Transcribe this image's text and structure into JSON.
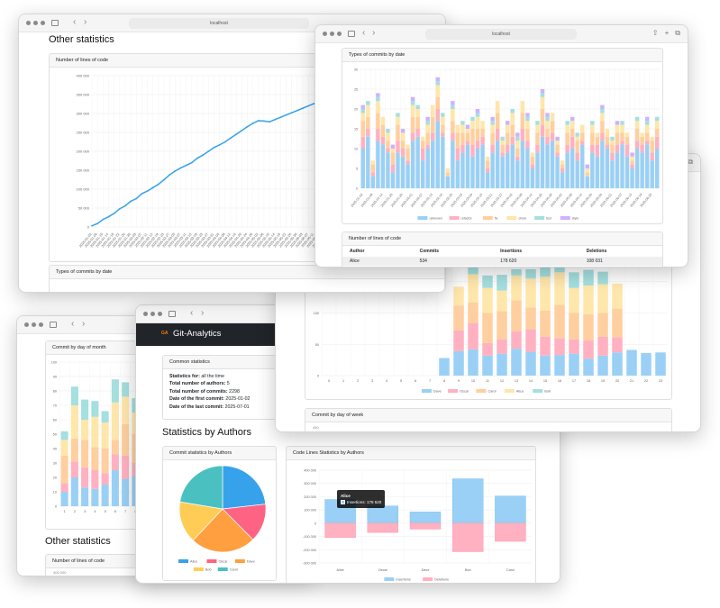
{
  "browser": {
    "address": "localhost"
  },
  "app": {
    "brand": "Git-Analytics",
    "logo_text": "GA"
  },
  "colors": {
    "blue": "#9ad0f5",
    "pink": "#ffb1c1",
    "orange": "#ffcf9f",
    "yellow": "#ffe6aa",
    "teal": "#a5dfdf",
    "purple": "#ccb2ff",
    "blue_solid": "#36a2eb",
    "pink_solid": "#ff6384",
    "orange_solid": "#ff9f40",
    "yellow_solid": "#ffcd56",
    "teal_solid": "#4bc0c0",
    "dark_header": "#212529"
  },
  "headings": {
    "other_statistics": "Other statistics",
    "statistics_by_authors": "Statistics by Authors"
  },
  "cards": {
    "lines_of_code": "Number of lines of code",
    "types_of_commits": "Types of commits by date",
    "commit_by_day_of_month": "Commit by day of month",
    "commit_by_day_of_week": "Commit by day of week",
    "common_statistics": "Common statistics",
    "commit_stats_by_authors": "Commit statistics by Authors",
    "code_lines_by_authors": "Code Lines Statistics by Authors"
  },
  "common_stats": [
    {
      "label": "Statistics for:",
      "value": "all the time"
    },
    {
      "label": "Total number of authors:",
      "value": "5"
    },
    {
      "label": "Total number of commits:",
      "value": "2298"
    },
    {
      "label": "Date of the first commit:",
      "value": "2025-01-02"
    },
    {
      "label": "Date of the last commit:",
      "value": "2025-07-01"
    }
  ],
  "lines_table": {
    "headers": [
      "Author",
      "Commits",
      "Insertions",
      "Deletions"
    ],
    "rows": [
      [
        "Alice",
        "534",
        "178 620",
        "108 031"
      ]
    ]
  },
  "day_of_week_first_tick": "450",
  "lines_of_code_first_tick": "400 000",
  "tooltip": {
    "title": "Alice",
    "text": "Insertions: 178 620"
  },
  "chart_data": [
    {
      "id": "lines",
      "type": "line",
      "title": "Number of lines of code",
      "ylim": [
        0,
        400000
      ],
      "yticks": [
        0,
        50000,
        100000,
        150000,
        200000,
        250000,
        300000,
        350000,
        400000
      ],
      "grid": true,
      "x": [
        "2025-01-02",
        "2025-01-06",
        "2025-01-10",
        "2025-01-14",
        "2025-01-18",
        "2025-01-22",
        "2025-01-26",
        "2025-01-30",
        "2025-02-03",
        "2025-02-07",
        "2025-02-11",
        "2025-02-15",
        "2025-02-19",
        "2025-02-23",
        "2025-02-27",
        "2025-03-03",
        "2025-03-07",
        "2025-03-11",
        "2025-03-15",
        "2025-03-19",
        "2025-03-23",
        "2025-03-27",
        "2025-03-31",
        "2025-04-04",
        "2025-04-08",
        "2025-04-12",
        "2025-04-16",
        "2025-04-20",
        "2025-04-24",
        "2025-04-28",
        "2025-05-02",
        "2025-05-06",
        "2025-05-10",
        "2025-05-14",
        "2025-05-18",
        "2025-05-22",
        "2025-05-26",
        "2025-05-30",
        "2025-06-03",
        "2025-06-07",
        "2025-06-11",
        "2025-06-15",
        "2025-06-19",
        "2025-06-23",
        "2025-06-27"
      ],
      "values": [
        3000,
        9000,
        20000,
        27000,
        36000,
        48000,
        56000,
        68000,
        75000,
        88000,
        95000,
        104000,
        113000,
        125000,
        138000,
        148000,
        156000,
        163000,
        170000,
        182000,
        190000,
        200000,
        210000,
        217000,
        225000,
        235000,
        245000,
        255000,
        265000,
        274000,
        281000,
        280000,
        278000,
        284000,
        290000,
        296000,
        302000,
        308000,
        314000,
        320000,
        326000,
        332000,
        338000,
        344000,
        350000
      ],
      "color": "#36a2eb"
    },
    {
      "id": "types",
      "type": "bar",
      "stacked": true,
      "title": "Types of commits by date",
      "ylim": [
        0,
        30
      ],
      "yticks": [
        0,
        5,
        10,
        15,
        20,
        25,
        30
      ],
      "grid": true,
      "legend": "bottom",
      "start_date": "2025-01-02",
      "categories_step_days": 3,
      "series": [
        {
          "name": "unknown",
          "color": "#9ad0f5",
          "values": [
            10,
            13,
            3,
            12,
            11,
            9,
            4,
            9,
            8,
            6,
            12,
            13,
            7,
            10,
            12,
            17,
            13,
            3,
            12,
            7,
            9,
            11,
            8,
            10,
            11,
            4,
            9,
            12,
            8,
            9,
            11,
            7,
            12,
            10,
            5,
            9,
            13,
            11,
            12,
            8,
            4,
            9,
            10,
            7,
            11,
            3,
            9,
            8,
            12,
            10,
            7,
            9,
            11,
            8,
            5,
            10,
            9,
            11,
            7,
            10
          ]
        },
        {
          "name": "refactor",
          "color": "#ffb1c1",
          "values": [
            3,
            2,
            1,
            3,
            2,
            1,
            2,
            3,
            2,
            1,
            2,
            2,
            3,
            1,
            2,
            3,
            1,
            0,
            2,
            3,
            2,
            1,
            3,
            2,
            2,
            1,
            2,
            3,
            1,
            2,
            2,
            1,
            3,
            2,
            1,
            2,
            3,
            2,
            2,
            1,
            1,
            2,
            3,
            2,
            1,
            0,
            2,
            3,
            2,
            1,
            2,
            2,
            1,
            3,
            1,
            2,
            2,
            1,
            2,
            3
          ]
        },
        {
          "name": "fix",
          "color": "#ffcf9f",
          "values": [
            4,
            3,
            2,
            4,
            3,
            2,
            3,
            4,
            2,
            3,
            4,
            3,
            2,
            3,
            4,
            3,
            2,
            1,
            3,
            4,
            3,
            2,
            4,
            3,
            2,
            2,
            3,
            4,
            2,
            3,
            3,
            2,
            4,
            3,
            2,
            3,
            4,
            2,
            3,
            2,
            1,
            3,
            2,
            3,
            2,
            1,
            3,
            2,
            3,
            2,
            2,
            3,
            2,
            2,
            1,
            3,
            2,
            2,
            3,
            2
          ]
        },
        {
          "name": "chore",
          "color": "#ffe6aa",
          "values": [
            2,
            3,
            1,
            3,
            2,
            2,
            1,
            2,
            2,
            1,
            3,
            2,
            1,
            2,
            3,
            3,
            2,
            1,
            3,
            2,
            2,
            1,
            2,
            3,
            2,
            1,
            2,
            3,
            1,
            2,
            3,
            2,
            3,
            2,
            1,
            2,
            3,
            2,
            2,
            1,
            1,
            2,
            2,
            1,
            2,
            1,
            2,
            1,
            2,
            2,
            1,
            2,
            2,
            1,
            1,
            2,
            1,
            2,
            1,
            2
          ]
        },
        {
          "name": "test",
          "color": "#a5dfdf",
          "values": [
            1,
            1,
            0,
            1,
            0,
            1,
            0,
            1,
            0,
            0,
            1,
            1,
            0,
            1,
            0,
            1,
            1,
            0,
            1,
            0,
            1,
            0,
            1,
            1,
            0,
            0,
            1,
            0,
            1,
            0,
            1,
            1,
            0,
            1,
            0,
            1,
            1,
            1,
            0,
            0,
            0,
            1,
            0,
            1,
            0,
            0,
            1,
            0,
            1,
            0,
            1,
            0,
            1,
            0,
            0,
            1,
            0,
            1,
            0,
            1
          ]
        },
        {
          "name": "style",
          "color": "#ccb2ff",
          "values": [
            1,
            0,
            0,
            1,
            0,
            0,
            1,
            0,
            1,
            0,
            1,
            0,
            0,
            1,
            0,
            1,
            0,
            0,
            1,
            0,
            0,
            1,
            0,
            1,
            0,
            0,
            1,
            0,
            0,
            1,
            0,
            1,
            0,
            1,
            0,
            0,
            1,
            1,
            0,
            1,
            0,
            0,
            1,
            0,
            0,
            1,
            0,
            0,
            1,
            0,
            0,
            1,
            0,
            0,
            1,
            0,
            0,
            1,
            0,
            0
          ]
        }
      ]
    },
    {
      "id": "hours",
      "type": "bar",
      "stacked": true,
      "ylim": [
        0,
        200
      ],
      "yticks": [
        0,
        50,
        100,
        150
      ],
      "grid": true,
      "legend": "bottom",
      "categories": [
        "0",
        "1",
        "2",
        "3",
        "4",
        "5",
        "6",
        "7",
        "8",
        "9",
        "10",
        "11",
        "12",
        "13",
        "14",
        "15",
        "16",
        "17",
        "18",
        "19",
        "20",
        "21",
        "22",
        "23"
      ],
      "series": [
        {
          "name": "Dave",
          "color": "#9ad0f5",
          "values": [
            0,
            0,
            0,
            0,
            0,
            0,
            0,
            0,
            28,
            39,
            42,
            32,
            35,
            43,
            38,
            32,
            33,
            35,
            27,
            32,
            37,
            41,
            36,
            37
          ]
        },
        {
          "name": "Oscar",
          "color": "#ffb1c1",
          "values": [
            0,
            0,
            0,
            0,
            0,
            0,
            0,
            0,
            0,
            33,
            42,
            20,
            23,
            28,
            36,
            30,
            27,
            23,
            29,
            30,
            24,
            0,
            0,
            0
          ]
        },
        {
          "name": "Carol",
          "color": "#ffcf9f",
          "values": [
            0,
            0,
            0,
            0,
            0,
            0,
            0,
            0,
            0,
            40,
            33,
            48,
            45,
            49,
            35,
            42,
            53,
            42,
            42,
            38,
            46,
            0,
            0,
            0
          ]
        },
        {
          "name": "Alice",
          "color": "#ffe6aa",
          "values": [
            0,
            0,
            0,
            0,
            0,
            0,
            0,
            0,
            0,
            30,
            45,
            40,
            33,
            40,
            46,
            54,
            52,
            40,
            46,
            46,
            40,
            0,
            0,
            0
          ]
        },
        {
          "name": "Bob",
          "color": "#a5dfdf",
          "values": [
            0,
            0,
            0,
            0,
            0,
            0,
            0,
            0,
            0,
            0,
            25,
            20,
            25,
            10,
            15,
            15,
            10,
            25,
            25,
            20,
            0,
            0,
            0,
            0
          ]
        }
      ]
    },
    {
      "id": "dom",
      "type": "bar",
      "stacked": true,
      "title": "Commit by day of month",
      "ylim": [
        0,
        100
      ],
      "yticks": [
        0,
        10,
        20,
        30,
        40,
        50,
        60,
        70,
        80,
        90,
        100
      ],
      "grid": true,
      "categories": [
        "1",
        "2",
        "3",
        "4",
        "5",
        "6",
        "7",
        "8"
      ],
      "series": [
        {
          "name": "Dave",
          "color": "#9ad0f5",
          "values": [
            10,
            20,
            13,
            12,
            15,
            25,
            19,
            21
          ]
        },
        {
          "name": "Oscar",
          "color": "#ffb1c1",
          "values": [
            6,
            11,
            14,
            13,
            8,
            11,
            16,
            9
          ]
        },
        {
          "name": "Carol",
          "color": "#ffcf9f",
          "values": [
            19,
            16,
            19,
            16,
            17,
            10,
            22,
            20
          ]
        },
        {
          "name": "Alice",
          "color": "#ffe6aa",
          "values": [
            11,
            23,
            14,
            21,
            18,
            26,
            19,
            15
          ]
        },
        {
          "name": "Bob",
          "color": "#a5dfdf",
          "values": [
            6,
            13,
            14,
            11,
            8,
            16,
            10,
            10
          ]
        }
      ]
    },
    {
      "id": "pie",
      "type": "pie",
      "title": "Commit statistics by Authors",
      "legend": "bottom",
      "categories": [
        "Alice",
        "Oscar",
        "Dave",
        "Bob",
        "Carol"
      ],
      "values": [
        534,
        330,
        560,
        360,
        514
      ],
      "colors": [
        "#36a2eb",
        "#ff6384",
        "#ff9f40",
        "#ffcd56",
        "#4bc0c0"
      ]
    },
    {
      "id": "codelines",
      "type": "bar",
      "title": "Code Lines Statistics by Authors",
      "ylim": [
        -300000,
        400000
      ],
      "yticks": [
        -300000,
        -200000,
        -100000,
        0,
        100000,
        200000,
        300000,
        400000
      ],
      "grid": true,
      "legend": "bottom",
      "categories": [
        "Alice",
        "Oscar",
        "Dave",
        "Bob",
        "Carol"
      ],
      "series": [
        {
          "name": "Insertions",
          "color": "#9ad0f5",
          "values": [
            178620,
            130000,
            85000,
            335000,
            205000
          ]
        },
        {
          "name": "Deletions",
          "color": "#ffb1c1",
          "values": [
            -108031,
            -70000,
            -45000,
            -215000,
            -137000
          ]
        }
      ]
    }
  ]
}
